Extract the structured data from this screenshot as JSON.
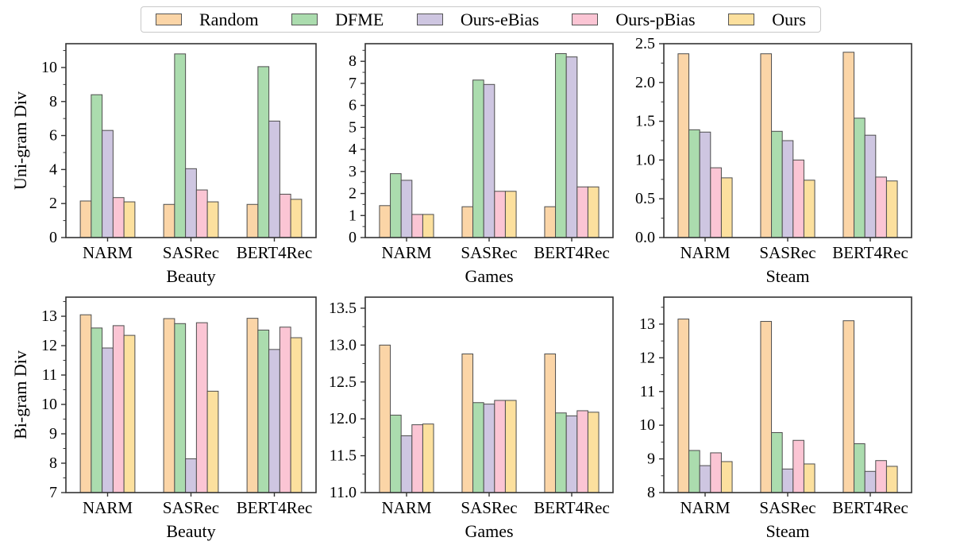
{
  "figure": {
    "background": "#ffffff",
    "axis_color": "#333333",
    "bar_edge_color": "#4d4d4d",
    "row_ylabels": [
      "Uni-gram Div",
      "Bi-gram Div"
    ]
  },
  "legend": {
    "entries": [
      {
        "label": "Random",
        "color": "#fbd5a7"
      },
      {
        "label": "DFME",
        "color": "#abdcae"
      },
      {
        "label": "Ours-eBias",
        "color": "#cec6e1"
      },
      {
        "label": "Ours-pBias",
        "color": "#fbc5d4"
      },
      {
        "label": "Ours",
        "color": "#fce09e"
      }
    ]
  },
  "chart_data": [
    {
      "type": "bar",
      "title": "",
      "xlabel": "Beauty",
      "ylabel": "Uni-gram Div",
      "categories": [
        "NARM",
        "SASRec",
        "BERT4Rec"
      ],
      "ylim": [
        0,
        11.4
      ],
      "yticks": [
        0,
        2,
        4,
        6,
        8,
        10
      ],
      "ytick_decimals": 0,
      "grid": false,
      "series": [
        {
          "name": "Random",
          "values": [
            2.15,
            1.95,
            1.95
          ]
        },
        {
          "name": "DFME",
          "values": [
            8.4,
            10.8,
            10.05
          ]
        },
        {
          "name": "Ours-eBias",
          "values": [
            6.3,
            4.05,
            6.85
          ]
        },
        {
          "name": "Ours-pBias",
          "values": [
            2.35,
            2.8,
            2.55
          ]
        },
        {
          "name": "Ours",
          "values": [
            2.1,
            2.1,
            2.25
          ]
        }
      ]
    },
    {
      "type": "bar",
      "title": "",
      "xlabel": "Games",
      "ylabel": "",
      "categories": [
        "NARM",
        "SASRec",
        "BERT4Rec"
      ],
      "ylim": [
        0,
        8.8
      ],
      "yticks": [
        0,
        1,
        2,
        3,
        4,
        5,
        6,
        7,
        8
      ],
      "ytick_decimals": 0,
      "grid": false,
      "series": [
        {
          "name": "Random",
          "values": [
            1.45,
            1.4,
            1.4
          ]
        },
        {
          "name": "DFME",
          "values": [
            2.9,
            7.15,
            8.35
          ]
        },
        {
          "name": "Ours-eBias",
          "values": [
            2.6,
            6.95,
            8.2
          ]
        },
        {
          "name": "Ours-pBias",
          "values": [
            1.05,
            2.1,
            2.3
          ]
        },
        {
          "name": "Ours",
          "values": [
            1.05,
            2.1,
            2.3
          ]
        }
      ]
    },
    {
      "type": "bar",
      "title": "",
      "xlabel": "Steam",
      "ylabel": "",
      "categories": [
        "NARM",
        "SASRec",
        "BERT4Rec"
      ],
      "ylim": [
        0,
        2.5
      ],
      "yticks": [
        0.0,
        0.5,
        1.0,
        1.5,
        2.0,
        2.5
      ],
      "ytick_decimals": 1,
      "grid": false,
      "series": [
        {
          "name": "Random",
          "values": [
            2.37,
            2.37,
            2.39
          ]
        },
        {
          "name": "DFME",
          "values": [
            1.39,
            1.37,
            1.54
          ]
        },
        {
          "name": "Ours-eBias",
          "values": [
            1.36,
            1.25,
            1.32
          ]
        },
        {
          "name": "Ours-pBias",
          "values": [
            0.9,
            1.0,
            0.78
          ]
        },
        {
          "name": "Ours",
          "values": [
            0.77,
            0.74,
            0.73
          ]
        }
      ]
    },
    {
      "type": "bar",
      "title": "",
      "xlabel": "Beauty",
      "ylabel": "Bi-gram Div",
      "categories": [
        "NARM",
        "SASRec",
        "BERT4Rec"
      ],
      "ylim": [
        7,
        13.65
      ],
      "yticks": [
        7,
        8,
        9,
        10,
        11,
        12,
        13
      ],
      "ytick_decimals": 0,
      "grid": false,
      "series": [
        {
          "name": "Random",
          "values": [
            13.05,
            12.92,
            12.93
          ]
        },
        {
          "name": "DFME",
          "values": [
            12.6,
            12.75,
            12.53
          ]
        },
        {
          "name": "Ours-eBias",
          "values": [
            11.92,
            8.15,
            11.87
          ]
        },
        {
          "name": "Ours-pBias",
          "values": [
            12.68,
            12.78,
            12.63
          ]
        },
        {
          "name": "Ours",
          "values": [
            12.35,
            10.45,
            12.27
          ]
        }
      ]
    },
    {
      "type": "bar",
      "title": "",
      "xlabel": "Games",
      "ylabel": "",
      "categories": [
        "NARM",
        "SASRec",
        "BERT4Rec"
      ],
      "ylim": [
        11.0,
        13.65
      ],
      "yticks": [
        11.0,
        11.5,
        12.0,
        12.5,
        13.0,
        13.5
      ],
      "ytick_decimals": 1,
      "grid": false,
      "series": [
        {
          "name": "Random",
          "values": [
            13.0,
            12.88,
            12.88
          ]
        },
        {
          "name": "DFME",
          "values": [
            12.05,
            12.22,
            12.08
          ]
        },
        {
          "name": "Ours-eBias",
          "values": [
            11.77,
            12.2,
            12.04
          ]
        },
        {
          "name": "Ours-pBias",
          "values": [
            11.92,
            12.25,
            12.11
          ]
        },
        {
          "name": "Ours",
          "values": [
            11.93,
            12.25,
            12.09
          ]
        }
      ]
    },
    {
      "type": "bar",
      "title": "",
      "xlabel": "Steam",
      "ylabel": "",
      "categories": [
        "NARM",
        "SASRec",
        "BERT4Rec"
      ],
      "ylim": [
        8,
        13.8
      ],
      "yticks": [
        8,
        9,
        10,
        11,
        12,
        13
      ],
      "ytick_decimals": 0,
      "grid": false,
      "series": [
        {
          "name": "Random",
          "values": [
            13.15,
            13.08,
            13.1
          ]
        },
        {
          "name": "DFME",
          "values": [
            9.25,
            9.78,
            9.45
          ]
        },
        {
          "name": "Ours-eBias",
          "values": [
            8.8,
            8.7,
            8.63
          ]
        },
        {
          "name": "Ours-pBias",
          "values": [
            9.18,
            9.55,
            8.95
          ]
        },
        {
          "name": "Ours",
          "values": [
            8.92,
            8.85,
            8.78
          ]
        }
      ]
    }
  ]
}
